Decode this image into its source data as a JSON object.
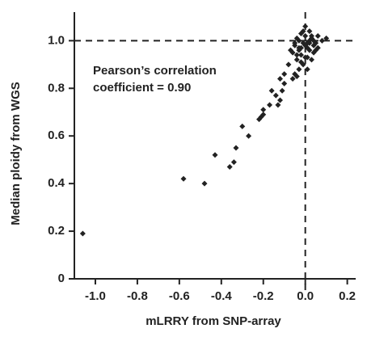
{
  "chart_data": {
    "type": "scatter",
    "xlabel": "mLRRY from SNP-array",
    "ylabel": "Median ploidy from WGS",
    "annotation": [
      "Pearson’s correlation",
      "coefficient = 0.90"
    ],
    "color": "#222222",
    "xlim": [
      -1.1,
      0.24
    ],
    "ylim": [
      0,
      1.12
    ],
    "xticks": [
      {
        "value": -1,
        "label": "-1.0"
      },
      -0.8,
      -0.6,
      -0.4,
      -0.2,
      {
        "value": 0,
        "label": "0.0"
      },
      0.2
    ],
    "yticks": [
      0,
      0.2,
      0.4,
      0.6,
      0.8,
      {
        "value": 1,
        "label": "1.0"
      }
    ],
    "hlines": [
      1
    ],
    "vlines": [
      0
    ],
    "x": [
      -1.06,
      -0.58,
      -0.48,
      -0.43,
      -0.36,
      -0.34,
      -0.33,
      -0.3,
      -0.27,
      -0.22,
      -0.21,
      -0.2,
      -0.2,
      -0.17,
      -0.13,
      -0.12,
      -0.16,
      -0.14,
      -0.11,
      -0.1,
      -0.12,
      -0.1,
      -0.06,
      -0.05,
      -0.08,
      -0.04,
      -0.03,
      -0.02,
      -0.05,
      -0.04,
      -0.03,
      -0.02,
      -0.01,
      0,
      0.01,
      0.02,
      0.03,
      0.04,
      0.05,
      0.06,
      0.08,
      0.1,
      -0.06,
      -0.04,
      -0.02,
      0,
      0.02,
      0.04,
      0.06,
      -0.03,
      -0.01,
      0.01,
      0.03,
      0.05,
      -0.05,
      -0.02,
      0,
      0.02,
      0.04,
      -0.01,
      0.01,
      0.03,
      -0.03,
      0.0,
      0.02,
      -0.07,
      -0.04,
      0.01
    ],
    "y": [
      0.19,
      0.42,
      0.4,
      0.52,
      0.47,
      0.49,
      0.55,
      0.64,
      0.6,
      0.67,
      0.68,
      0.69,
      0.71,
      0.73,
      0.73,
      0.75,
      0.79,
      0.77,
      0.79,
      0.82,
      0.84,
      0.86,
      0.84,
      0.86,
      0.9,
      0.92,
      0.88,
      0.94,
      0.98,
      1.01,
      0.96,
      1.03,
      0.99,
      1.02,
      0.97,
      1.0,
      1.01,
      0.98,
      0.99,
      1.02,
      1.0,
      1.01,
      0.95,
      0.94,
      0.97,
      0.93,
      0.96,
      0.95,
      0.97,
      1.0,
      1.04,
      0.99,
      1.02,
      0.96,
      0.99,
      0.91,
      0.98,
      1.04,
      1.0,
      0.9,
      0.93,
      0.92,
      0.97,
      1.06,
      0.99,
      0.96,
      0.85,
      0.88
    ]
  }
}
